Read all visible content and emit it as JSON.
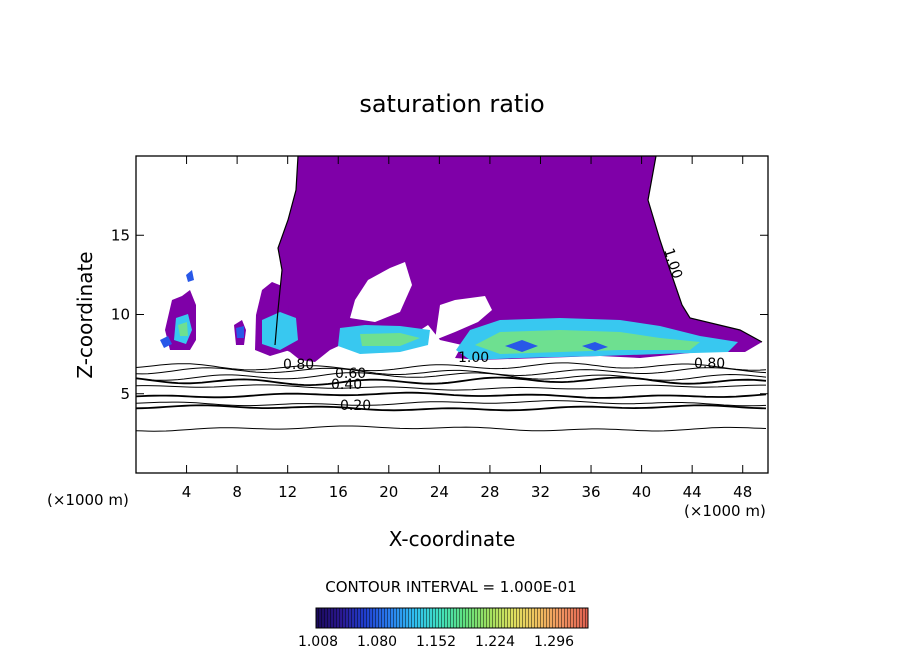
{
  "chart_data": {
    "type": "contour",
    "title": "saturation ratio",
    "xlabel": "X-coordinate",
    "ylabel": "Z-coordinate",
    "x_unit_label_left": "(×1000 m)",
    "x_unit_label_right": "(×1000 m)",
    "xlim": [
      0,
      50
    ],
    "ylim": [
      0,
      20
    ],
    "x_ticks": [
      4,
      8,
      12,
      16,
      20,
      24,
      28,
      32,
      36,
      40,
      44,
      48
    ],
    "x_tick_labels": [
      "4",
      "8",
      "12",
      "16",
      "20",
      "24",
      "28",
      "32",
      "36",
      "40",
      "44",
      "48"
    ],
    "y_ticks": [
      5,
      10,
      15
    ],
    "y_tick_labels": [
      "5",
      "10",
      "15"
    ],
    "contour_labels": [
      "0.20",
      "0.40",
      "0.60",
      "0.80",
      "1.00",
      "0.80",
      "1.00"
    ],
    "contour_lines_z": [
      2.8,
      4.1,
      4.4,
      4.9,
      5.4,
      5.8,
      6.1,
      6.4,
      6.7
    ],
    "contour_interval_text": "CONTOUR INTERVAL = 1.000E-01",
    "colorbar": {
      "tick_labels": [
        "1.008",
        "1.080",
        "1.152",
        "1.224",
        "1.296"
      ],
      "colors": [
        "#1a0a5a",
        "#2a1890",
        "#2040d0",
        "#2a80f0",
        "#30c0f0",
        "#40e0c0",
        "#60e080",
        "#a0e060",
        "#e0e060",
        "#f0c060",
        "#f09060",
        "#e06050"
      ]
    },
    "fill_colors": {
      "main": "#7f00a8",
      "blue": "#2858e8",
      "cyan": "#38c8f0",
      "green": "#6ee090",
      "dark": "#1a2080"
    },
    "grid": false,
    "legend": "none"
  }
}
